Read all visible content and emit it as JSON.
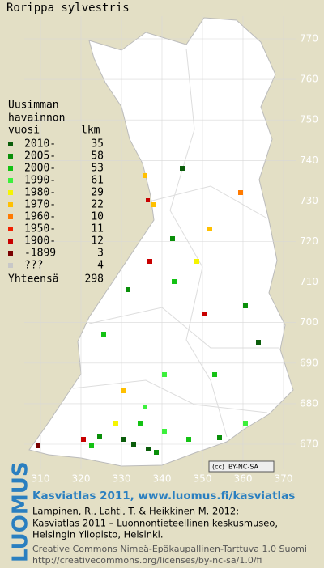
{
  "title": "Rorippa sylvestris",
  "legend": {
    "header": [
      "Uusimman",
      "havainnon"
    ],
    "year_header": "vuosi",
    "count_header": "lkm",
    "rows": [
      {
        "label": "2010-",
        "count": 35,
        "color": "#0b5d0b"
      },
      {
        "label": "2005-",
        "count": 58,
        "color": "#0a8f0a"
      },
      {
        "label": "2000-",
        "count": 53,
        "color": "#14c214"
      },
      {
        "label": "1990-",
        "count": 61,
        "color": "#3cf03c"
      },
      {
        "label": "1980-",
        "count": 29,
        "color": "#f5f500"
      },
      {
        "label": "1970-",
        "count": 22,
        "color": "#ffc000"
      },
      {
        "label": "1960-",
        "count": 10,
        "color": "#ff7a00"
      },
      {
        "label": "1950-",
        "count": 11,
        "color": "#f02000"
      },
      {
        "label": "1900-",
        "count": 12,
        "color": "#c80000"
      },
      {
        "label": "-1899",
        "count": 3,
        "color": "#7a0000"
      },
      {
        "label": "???",
        "count": 4,
        "color": "#c8c8c8"
      }
    ],
    "total_label": "Yhteensä",
    "total": 298
  },
  "map": {
    "y_ticks": [
      770,
      760,
      750,
      740,
      730,
      720,
      710,
      700,
      690,
      680,
      670
    ],
    "x_ticks": [
      310,
      320,
      330,
      340,
      350,
      360,
      370
    ]
  },
  "license_badge": "BY-NC-SA",
  "logo": "LUOMUS",
  "footer": {
    "headline": "Kasviatlas 2011, www.luomus.fi/kasviatlas",
    "citation": [
      "Lampinen, R., Lahti, T. & Heikkinen M. 2012:",
      "Kasviatlas 2011 – Luonnontieteellinen keskusmuseo,",
      "Helsingin Yliopisto, Helsinki."
    ],
    "license": [
      "Creative Commons Nimeä-Epäkaupallinen-Tarttuva 1.0 Suomi",
      "http://creativecommons.org/licenses/by-nc-sa/1.0/fi"
    ]
  }
}
